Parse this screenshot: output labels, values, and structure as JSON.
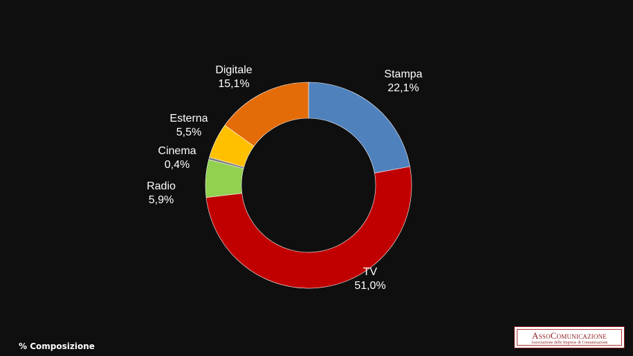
{
  "chart_data": {
    "type": "pie",
    "variant": "donut",
    "categories": [
      "Stampa",
      "TV",
      "Radio",
      "Cinema",
      "Esterna",
      "Digitale"
    ],
    "values": [
      22.1,
      51.0,
      5.9,
      0.4,
      5.5,
      15.1
    ],
    "value_labels": [
      "22,1%",
      "51,0%",
      "5,9%",
      "0,4%",
      "5,5%",
      "15,1%"
    ],
    "colors": [
      "#4f81bd",
      "#c00000",
      "#92d050",
      "#7f7f7f",
      "#ffc000",
      "#e36c09"
    ],
    "start_angle_deg": 0,
    "direction": "clockwise",
    "legend": "none"
  },
  "footnote": "% Composizione",
  "logo": {
    "title": "AssoComunicazione",
    "subtitle": "Associazione delle Imprese di Comunicazione"
  }
}
